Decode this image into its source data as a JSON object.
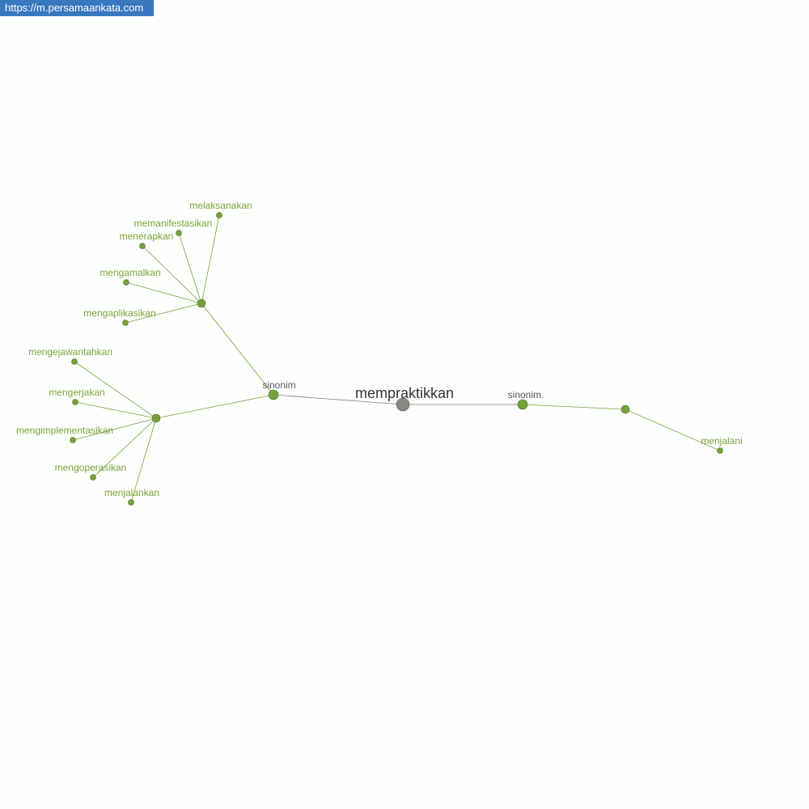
{
  "site_url": "https://m.persamaankata.com",
  "colors": {
    "accent": "#76a03c",
    "center": "#888888",
    "relation_label": "#555555",
    "word_label": "#7aa33a",
    "url_bar": "#3878bf"
  },
  "graph": {
    "center": "mempraktikkan",
    "relations": [
      {
        "label": "sinonim",
        "groups": [
          {
            "words": [
              "melaksanakan",
              "memanifestasikan",
              "menerapkan",
              "mengamalkan",
              "mengaplikasikan"
            ]
          },
          {
            "words": [
              "mengejawantahkan",
              "mengerjakan",
              "mengimplementasikan",
              "mengoperasikan",
              "menjalankan"
            ]
          }
        ]
      },
      {
        "label": "sinonim.",
        "groups": [
          {
            "words": [
              "menjalani"
            ]
          }
        ]
      }
    ]
  }
}
